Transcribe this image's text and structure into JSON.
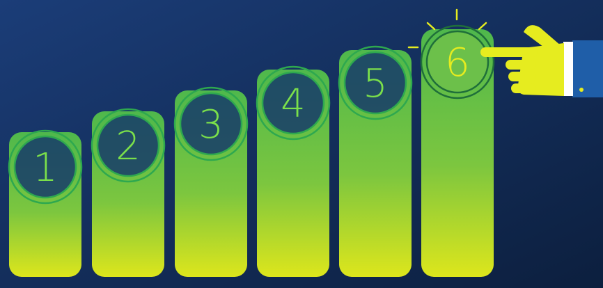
{
  "colors": {
    "background_top_left": "#1b3d78",
    "background_bottom_right": "#0c1f3e",
    "bar_top": "#57b84a",
    "bar_bottom": "#d6e51c",
    "circle_stroke": "#2ea84f",
    "circle_text": "#7be04a",
    "highlight": "#e6ec1f",
    "sleeve": "#1f5ea8",
    "cuff": "#ffffff"
  },
  "steps": [
    {
      "label": "1",
      "highlighted": false
    },
    {
      "label": "2",
      "highlighted": false
    },
    {
      "label": "3",
      "highlighted": false
    },
    {
      "label": "4",
      "highlighted": false
    },
    {
      "label": "5",
      "highlighted": false
    },
    {
      "label": "6",
      "highlighted": true
    }
  ],
  "pointer": {
    "icon": "pointing-hand-icon",
    "target_step": "6"
  }
}
